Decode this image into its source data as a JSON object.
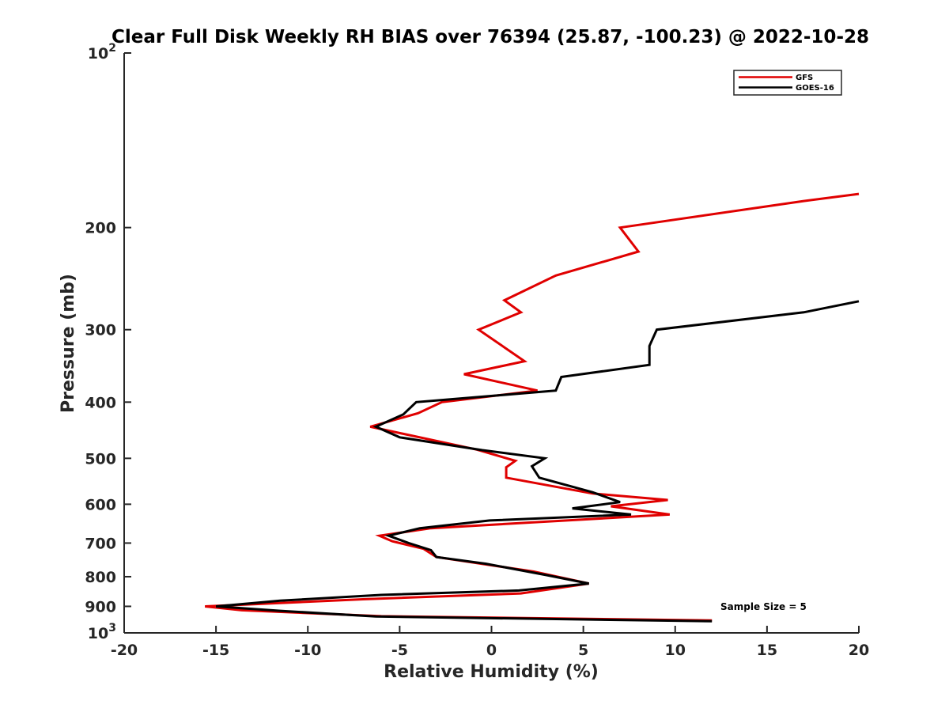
{
  "chart_data": {
    "type": "line",
    "title": "Clear Full Disk Weekly RH BIAS over 76394 (25.87, -100.23) @ 2022-10-28",
    "xlabel": "Relative Humidity (%)",
    "ylabel": "Pressure (mb)",
    "xlim": [
      -20,
      20
    ],
    "ylim": [
      100,
      1000
    ],
    "y_scale": "log",
    "y_reversed": true,
    "grid": false,
    "legend_position": "top-right",
    "x_ticks": [
      "-20",
      "-15",
      "-10",
      "-5",
      "0",
      "5",
      "10",
      "15",
      "20"
    ],
    "y_ticks": [
      {
        "value": 100,
        "base": "10",
        "exp": "2"
      },
      {
        "value": 200,
        "label": "200"
      },
      {
        "value": 300,
        "label": "300"
      },
      {
        "value": 400,
        "label": "400"
      },
      {
        "value": 500,
        "label": "500"
      },
      {
        "value": 600,
        "label": "600"
      },
      {
        "value": 700,
        "label": "700"
      },
      {
        "value": 800,
        "label": "800"
      },
      {
        "value": 900,
        "label": "900"
      },
      {
        "value": 1000,
        "base": "10",
        "exp": "3"
      }
    ],
    "series": [
      {
        "name": "GFS",
        "color": "#e00000",
        "points": [
          [
            20.0,
            175
          ],
          [
            17.0,
            180
          ],
          [
            7.0,
            200
          ],
          [
            8.0,
            220
          ],
          [
            3.5,
            242
          ],
          [
            0.7,
            267
          ],
          [
            1.6,
            280
          ],
          [
            -0.7,
            300
          ],
          [
            1.8,
            340
          ],
          [
            -1.5,
            358
          ],
          [
            2.5,
            382
          ],
          [
            -2.7,
            400
          ],
          [
            -4.0,
            418
          ],
          [
            -6.6,
            441
          ],
          [
            -0.8,
            483
          ],
          [
            1.3,
            505
          ],
          [
            0.8,
            518
          ],
          [
            0.8,
            540
          ],
          [
            5.5,
            575
          ],
          [
            9.6,
            590
          ],
          [
            6.5,
            605
          ],
          [
            9.7,
            625
          ],
          [
            -3.3,
            660
          ],
          [
            -6.1,
            680
          ],
          [
            -5.4,
            695
          ],
          [
            -3.7,
            716
          ],
          [
            -3.0,
            740
          ],
          [
            2.3,
            784
          ],
          [
            5.3,
            822
          ],
          [
            1.6,
            855
          ],
          [
            -7.0,
            875
          ],
          [
            -15.6,
            900
          ],
          [
            -13.6,
            914
          ],
          [
            -6.0,
            936
          ],
          [
            12.0,
            952
          ]
        ]
      },
      {
        "name": "GOES-16",
        "color": "#000000",
        "points": [
          [
            20.0,
            268
          ],
          [
            17.0,
            280
          ],
          [
            9.0,
            300
          ],
          [
            8.6,
            320
          ],
          [
            8.6,
            345
          ],
          [
            3.8,
            362
          ],
          [
            3.5,
            382
          ],
          [
            -4.1,
            400
          ],
          [
            -4.6,
            414
          ],
          [
            -4.8,
            420
          ],
          [
            -6.3,
            441
          ],
          [
            -5.0,
            460
          ],
          [
            -0.5,
            484
          ],
          [
            2.9,
            500
          ],
          [
            2.2,
            516
          ],
          [
            2.6,
            540
          ],
          [
            5.5,
            572
          ],
          [
            7.0,
            595
          ],
          [
            4.4,
            610
          ],
          [
            7.6,
            625
          ],
          [
            -0.1,
            640
          ],
          [
            -3.9,
            660
          ],
          [
            -5.6,
            680
          ],
          [
            -4.5,
            700
          ],
          [
            -3.3,
            720
          ],
          [
            -3.0,
            740
          ],
          [
            -0.3,
            760
          ],
          [
            3.0,
            795
          ],
          [
            5.3,
            822
          ],
          [
            1.5,
            845
          ],
          [
            -6.0,
            860
          ],
          [
            -11.5,
            880
          ],
          [
            -15.0,
            900
          ],
          [
            -11.5,
            916
          ],
          [
            -6.3,
            937
          ],
          [
            12.0,
            955
          ]
        ]
      }
    ],
    "annotations": [
      "Sample Size = 5"
    ]
  }
}
